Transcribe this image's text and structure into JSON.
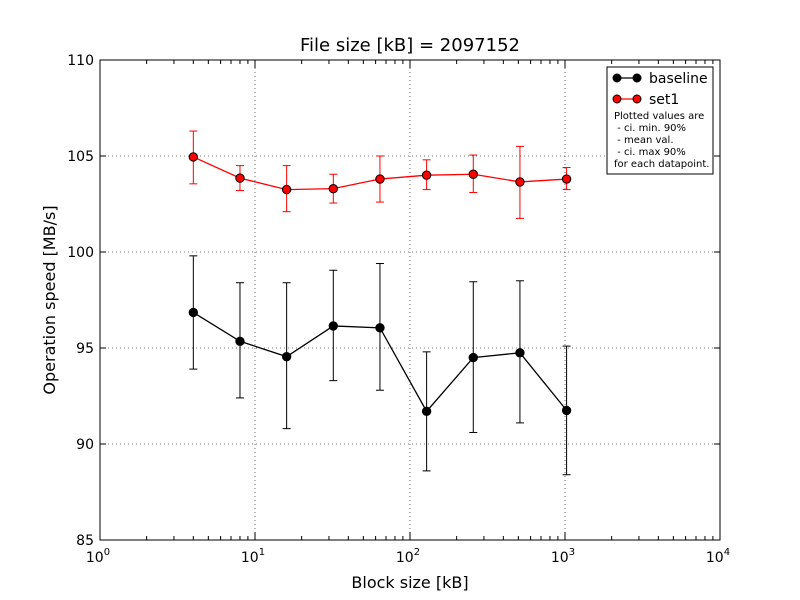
{
  "chart_data": {
    "type": "line",
    "title": "File size [kB] = 2097152",
    "xlabel": "Block size [kB]",
    "ylabel": "Operation speed [MB/s]",
    "xscale": "log",
    "xlim": [
      1,
      10000
    ],
    "ylim": [
      85,
      110
    ],
    "x_ticks": [
      {
        "value": 1,
        "base": "10",
        "exp": "0"
      },
      {
        "value": 10,
        "base": "10",
        "exp": "1"
      },
      {
        "value": 100,
        "base": "10",
        "exp": "2"
      },
      {
        "value": 1000,
        "base": "10",
        "exp": "3"
      },
      {
        "value": 10000,
        "base": "10",
        "exp": "4"
      }
    ],
    "y_ticks": [
      "85",
      "90",
      "95",
      "100",
      "105",
      "110"
    ],
    "grid": true,
    "legend_position": "top-right",
    "series": [
      {
        "name": "baseline",
        "color": "#000000",
        "marker_color": "#000000",
        "x": [
          4,
          8,
          16,
          32,
          64,
          128,
          256,
          512,
          1024
        ],
        "mean": [
          96.85,
          95.35,
          94.55,
          96.15,
          96.05,
          91.7,
          94.5,
          94.75,
          91.75
        ],
        "ci_min": [
          93.9,
          92.4,
          90.8,
          93.3,
          92.8,
          88.6,
          90.6,
          91.1,
          88.4
        ],
        "ci_max": [
          99.8,
          98.4,
          98.4,
          99.05,
          99.4,
          94.8,
          98.45,
          98.5,
          95.1
        ]
      },
      {
        "name": "set1",
        "color": "#ff0000",
        "marker_color": "#ff0000",
        "x": [
          4,
          8,
          16,
          32,
          64,
          128,
          256,
          512,
          1024
        ],
        "mean": [
          104.95,
          103.85,
          103.25,
          103.3,
          103.8,
          104.0,
          104.05,
          103.65,
          103.8
        ],
        "ci_min": [
          103.55,
          103.2,
          102.1,
          102.55,
          102.6,
          103.25,
          103.1,
          101.75,
          103.25
        ],
        "ci_max": [
          106.3,
          104.5,
          104.5,
          104.05,
          105.0,
          104.8,
          105.05,
          105.5,
          104.4
        ]
      }
    ],
    "legend_note": [
      "Plotted values are",
      " - ci. min. 90%",
      " - mean val.",
      " - ci. max 90%",
      "for each datapoint."
    ]
  }
}
